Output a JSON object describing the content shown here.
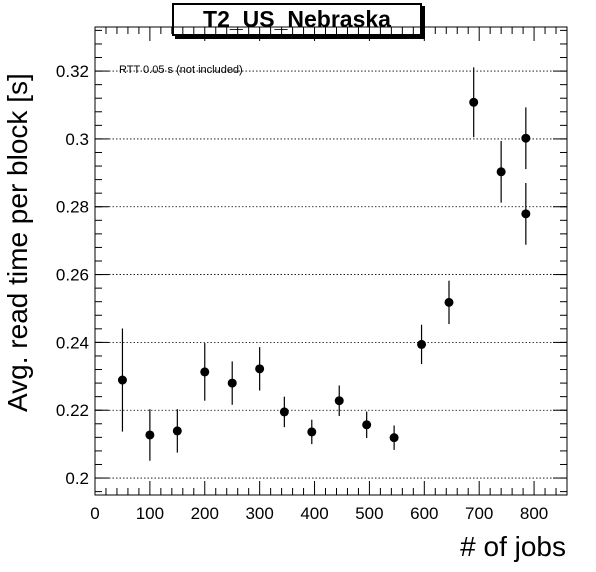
{
  "chart_data": {
    "type": "scatter",
    "title": "T2_US_Nebraska",
    "xlabel": "# of jobs",
    "ylabel": "Avg. read time per block [s]",
    "annotation": "RTT 0.05 s (not included)",
    "xlim": [
      0,
      860
    ],
    "ylim": [
      0.195,
      0.333
    ],
    "x_ticks": [
      0,
      100,
      200,
      300,
      400,
      500,
      600,
      700,
      800
    ],
    "y_ticks": [
      0.2,
      0.22,
      0.24,
      0.26,
      0.28,
      0.3,
      0.32
    ],
    "y_grid": true,
    "x_grid": false,
    "marker_color": "#000000",
    "points": [
      {
        "x": 50,
        "y": 0.2289,
        "err": 0.0152
      },
      {
        "x": 100,
        "y": 0.2127,
        "err": 0.0076
      },
      {
        "x": 150,
        "y": 0.2139,
        "err": 0.0064
      },
      {
        "x": 200,
        "y": 0.2313,
        "err": 0.0085
      },
      {
        "x": 250,
        "y": 0.228,
        "err": 0.0064
      },
      {
        "x": 300,
        "y": 0.2322,
        "err": 0.0064
      },
      {
        "x": 345,
        "y": 0.2195,
        "err": 0.0045
      },
      {
        "x": 395,
        "y": 0.2136,
        "err": 0.0036
      },
      {
        "x": 445,
        "y": 0.2228,
        "err": 0.0045
      },
      {
        "x": 495,
        "y": 0.2157,
        "err": 0.0039
      },
      {
        "x": 545,
        "y": 0.2119,
        "err": 0.0036
      },
      {
        "x": 595,
        "y": 0.2394,
        "err": 0.0058
      },
      {
        "x": 645,
        "y": 0.2518,
        "err": 0.0064
      },
      {
        "x": 690,
        "y": 0.3108,
        "err": 0.0103
      },
      {
        "x": 740,
        "y": 0.2903,
        "err": 0.0091
      },
      {
        "x": 785,
        "y": 0.3002,
        "err": 0.0091
      },
      {
        "x": 785,
        "y": 0.2779,
        "err": 0.0091
      }
    ]
  }
}
